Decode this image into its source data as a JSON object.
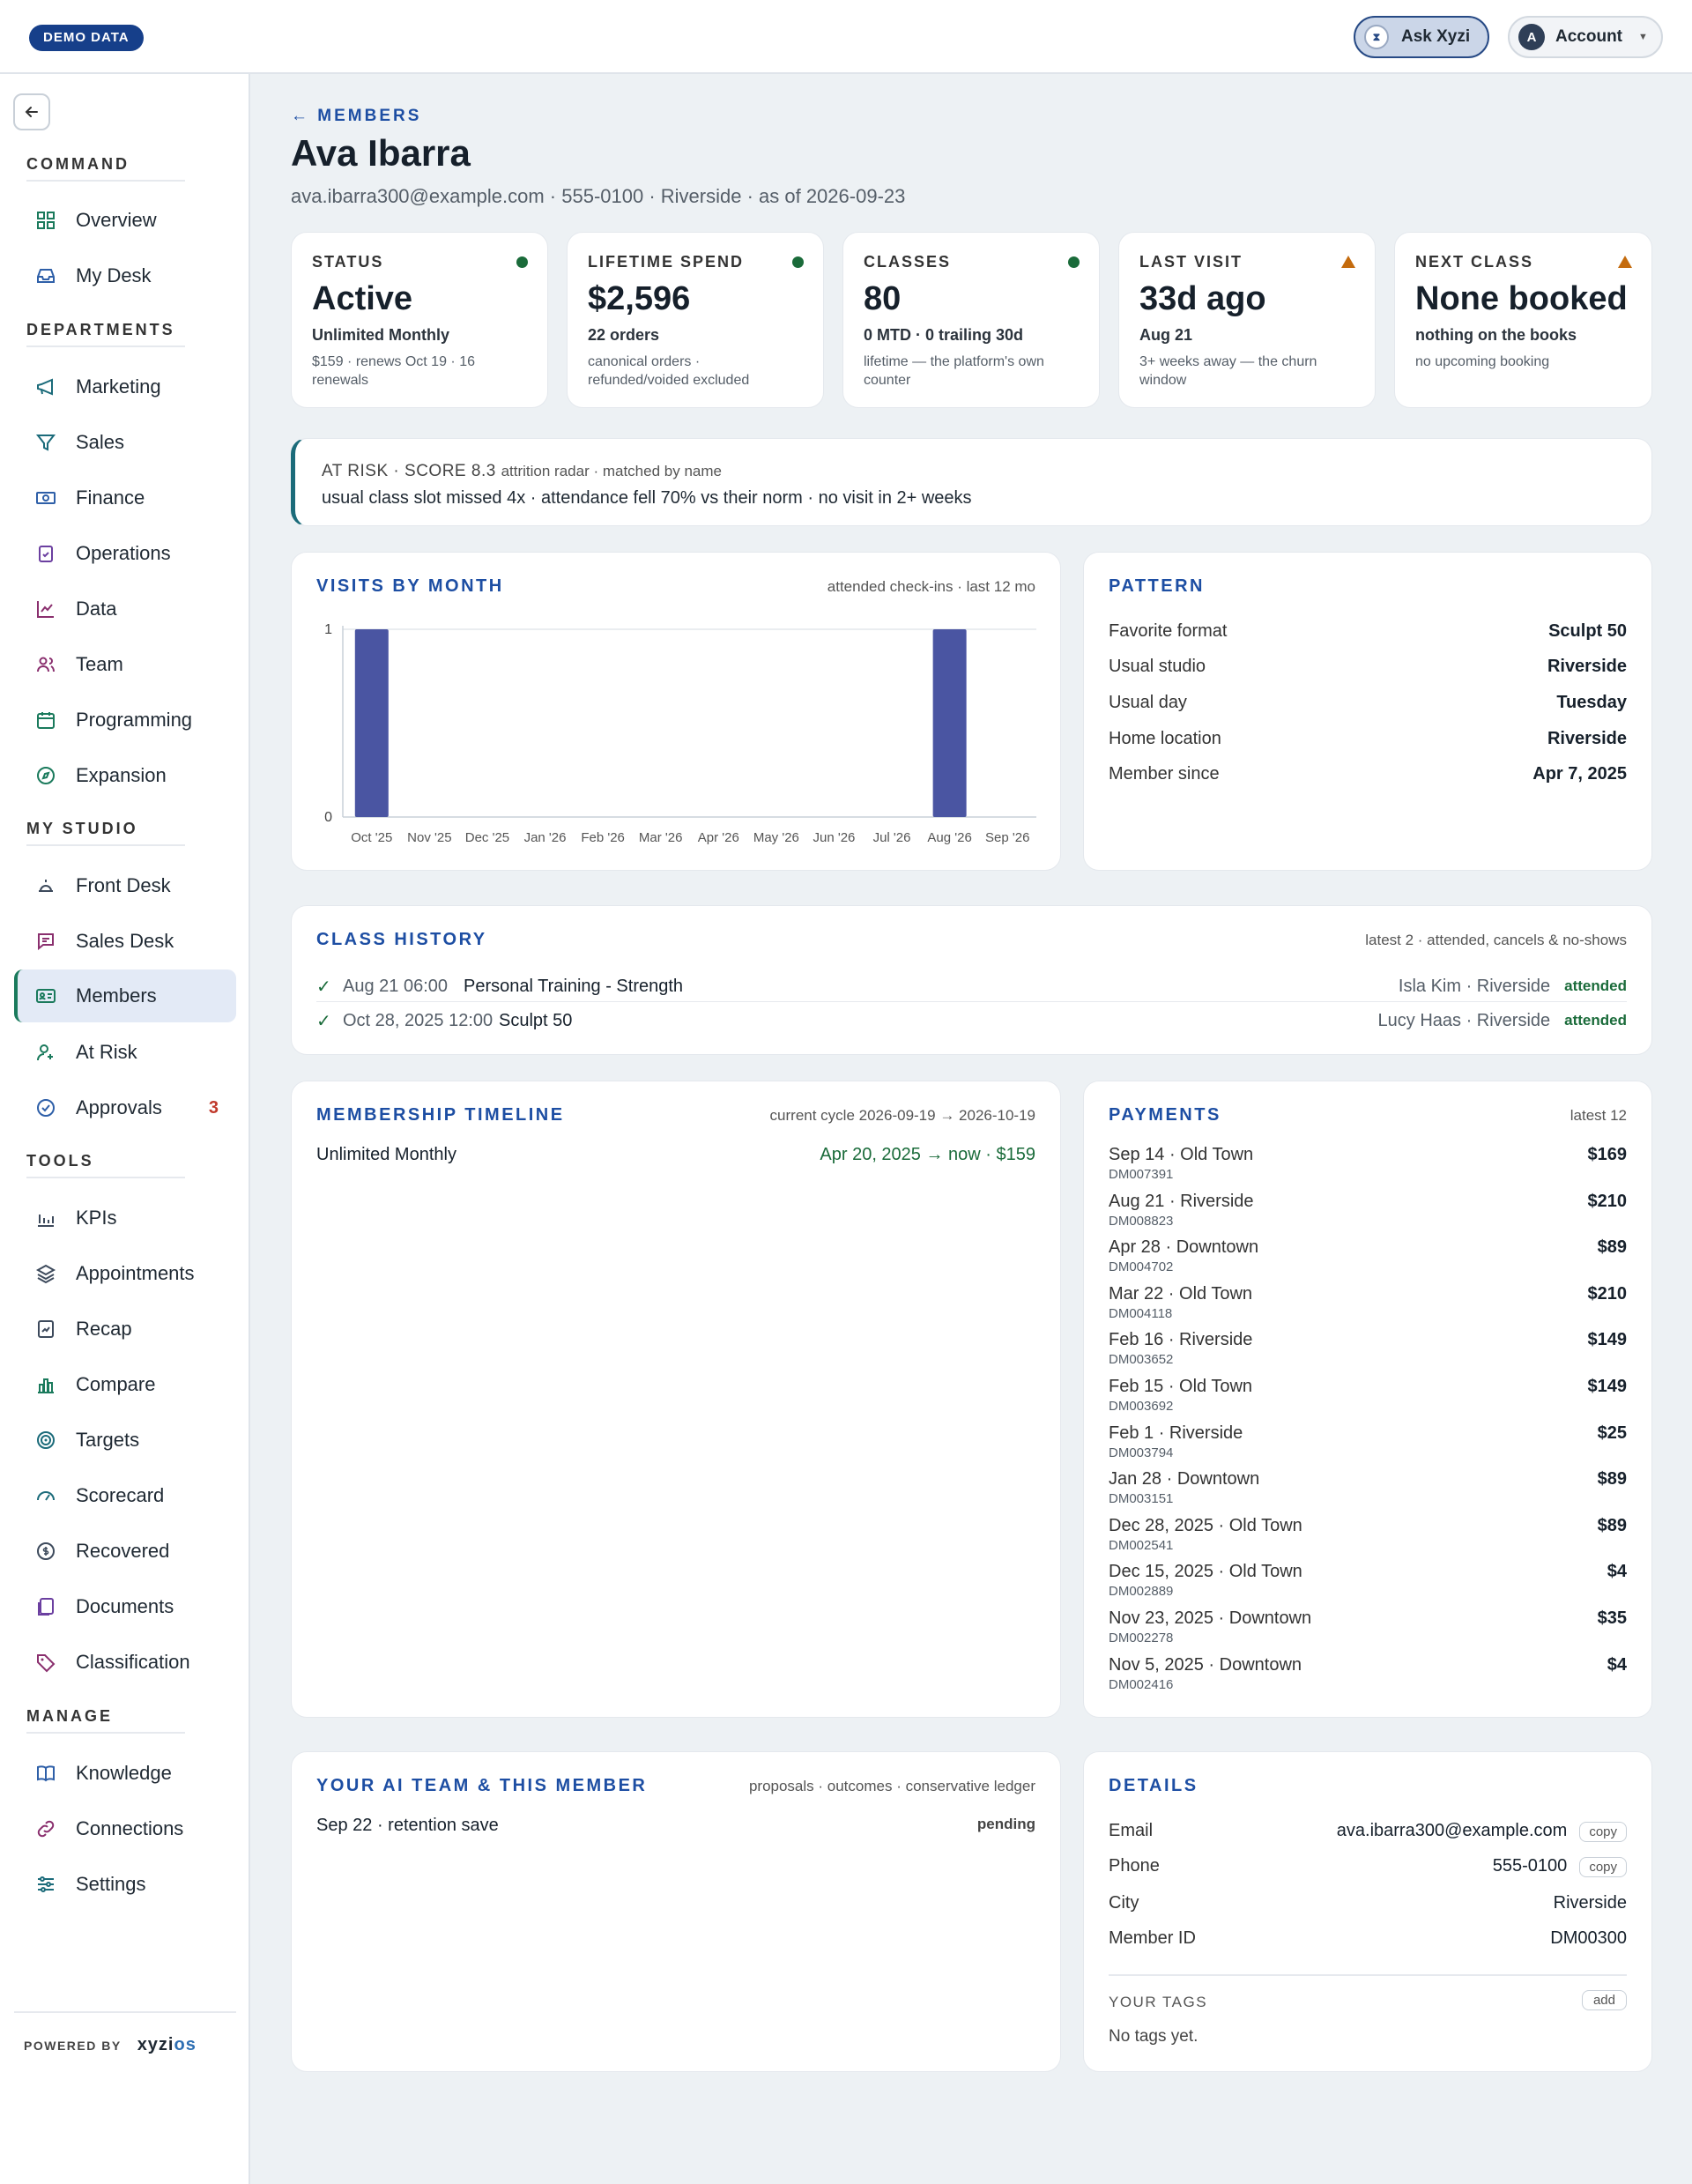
{
  "topbar": {
    "badge": "DEMO DATA",
    "ask_label": "Ask Xyzi",
    "ask_icon": "xyzi-logo-icon",
    "account_label": "Account",
    "account_initial": "A"
  },
  "sidebar": {
    "groups": {
      "command": "COMMAND",
      "departments": "DEPARTMENTS",
      "my_studio": "MY STUDIO",
      "tools": "TOOLS",
      "manage": "MANAGE"
    },
    "items": {
      "overview": "Overview",
      "my_desk": "My Desk",
      "marketing": "Marketing",
      "sales": "Sales",
      "finance": "Finance",
      "operations": "Operations",
      "data": "Data",
      "team": "Team",
      "programming": "Programming",
      "expansion": "Expansion",
      "front_desk": "Front Desk",
      "sales_desk": "Sales Desk",
      "members": "Members",
      "at_risk": "At Risk",
      "approvals": "Approvals",
      "approvals_count": "3",
      "kpis": "KPIs",
      "appointments": "Appointments",
      "recap": "Recap",
      "compare": "Compare",
      "targets": "Targets",
      "scorecard": "Scorecard",
      "recovered": "Recovered",
      "documents": "Documents",
      "classification": "Classification",
      "knowledge": "Knowledge",
      "connections": "Connections",
      "settings": "Settings"
    },
    "powered_by": "POWERED BY",
    "brand_a": "xyzi",
    "brand_b": "os"
  },
  "header": {
    "back": "← MEMBERS",
    "name": "Ava Ibarra",
    "subtitle": "ava.ibarra300@example.com · 555-0100 · Riverside · as of 2026-09-23"
  },
  "kpis": {
    "status": {
      "label": "STATUS",
      "value": "Active",
      "sub": "Unlimited Monthly",
      "note": "$159 · renews Oct 19 · 16 renewals",
      "indicator": "ok"
    },
    "spend": {
      "label": "LIFETIME SPEND",
      "value": "$2,596",
      "sub": "22 orders",
      "note": "canonical orders · refunded/voided excluded",
      "indicator": "ok"
    },
    "classes": {
      "label": "CLASSES",
      "value": "80",
      "sub": "0 MTD · 0 trailing 30d",
      "note": "lifetime — the platform's own counter",
      "indicator": "ok"
    },
    "last_visit": {
      "label": "LAST VISIT",
      "value": "33d ago",
      "sub": "Aug 21",
      "note": "3+ weeks away — the churn window",
      "indicator": "warn"
    },
    "next_class": {
      "label": "NEXT CLASS",
      "value": "None booked",
      "sub": "nothing on the books",
      "note": "no upcoming booking",
      "indicator": "warn"
    }
  },
  "risk": {
    "headline": "AT RISK · SCORE 8.3",
    "source": "attrition radar · matched by name",
    "reasons": "usual class slot missed 4x · attendance fell 70% vs their norm · no visit in 2+ weeks"
  },
  "visits": {
    "title": "VISITS BY MONTH",
    "meta": "attended check-ins · last 12 mo"
  },
  "chart_data": {
    "type": "bar",
    "categories": [
      "Oct '25",
      "Nov '25",
      "Dec '25",
      "Jan '26",
      "Feb '26",
      "Mar '26",
      "Apr '26",
      "May '26",
      "Jun '26",
      "Jul '26",
      "Aug '26",
      "Sep '26"
    ],
    "values": [
      1,
      0,
      0,
      0,
      0,
      0,
      0,
      0,
      0,
      0,
      1,
      0
    ],
    "ylim": [
      0,
      1
    ],
    "yticks": [
      "0",
      "1"
    ],
    "color": "#4a55a2",
    "grid": true
  },
  "pattern": {
    "title": "PATTERN",
    "rows": [
      {
        "k": "Favorite format",
        "v": "Sculpt 50"
      },
      {
        "k": "Usual studio",
        "v": "Riverside"
      },
      {
        "k": "Usual day",
        "v": "Tuesday"
      },
      {
        "k": "Home location",
        "v": "Riverside"
      },
      {
        "k": "Member since",
        "v": "Apr 7, 2025"
      }
    ]
  },
  "history": {
    "title": "CLASS HISTORY",
    "meta": "latest 2 · attended, cancels & no-shows",
    "rows": [
      {
        "mark": "✓",
        "when": "Aug 21 06:00",
        "cls": "Personal Training - Strength",
        "coach": "Isla Kim · Riverside",
        "status": "attended"
      },
      {
        "mark": "✓",
        "when": "Oct 28, 2025 12:00",
        "cls": "Sculpt 50",
        "coach": "Lucy Haas · Riverside",
        "status": "attended"
      }
    ]
  },
  "timeline": {
    "title": "MEMBERSHIP TIMELINE",
    "meta": "current cycle 2026-09-19 → 2026-10-19",
    "plan": "Unlimited Monthly",
    "range": "Apr 20, 2025 → now · $159"
  },
  "payments": {
    "title": "PAYMENTS",
    "meta": "latest 12",
    "rows": [
      {
        "d": "Sep 14 · Old Town",
        "a": "$169",
        "id": "DM007391"
      },
      {
        "d": "Aug 21 · Riverside",
        "a": "$210",
        "id": "DM008823"
      },
      {
        "d": "Apr 28 · Downtown",
        "a": "$89",
        "id": "DM004702"
      },
      {
        "d": "Mar 22 · Old Town",
        "a": "$210",
        "id": "DM004118"
      },
      {
        "d": "Feb 16 · Riverside",
        "a": "$149",
        "id": "DM003652"
      },
      {
        "d": "Feb 15 · Old Town",
        "a": "$149",
        "id": "DM003692"
      },
      {
        "d": "Feb 1 · Riverside",
        "a": "$25",
        "id": "DM003794"
      },
      {
        "d": "Jan 28 · Downtown",
        "a": "$89",
        "id": "DM003151"
      },
      {
        "d": "Dec 28, 2025 · Old Town",
        "a": "$89",
        "id": "DM002541"
      },
      {
        "d": "Dec 15, 2025 · Old Town",
        "a": "$4",
        "id": "DM002889"
      },
      {
        "d": "Nov 23, 2025 · Downtown",
        "a": "$35",
        "id": "DM002278"
      },
      {
        "d": "Nov 5, 2025 · Downtown",
        "a": "$4",
        "id": "DM002416"
      }
    ]
  },
  "ai_team": {
    "title": "YOUR AI TEAM & THIS MEMBER",
    "meta": "proposals · outcomes · conservative ledger",
    "item": "Sep 22 · retention save",
    "status": "pending"
  },
  "details": {
    "title": "DETAILS",
    "email_k": "Email",
    "email_v": "ava.ibarra300@example.com",
    "phone_k": "Phone",
    "phone_v": "555-0100",
    "city_k": "City",
    "city_v": "Riverside",
    "id_k": "Member ID",
    "id_v": "DM00300",
    "copy": "copy",
    "tags_label": "YOUR TAGS",
    "add": "add",
    "tags_empty": "No tags yet."
  },
  "colors": {
    "accent": "#1d4ea3",
    "ok": "#1a6b3a",
    "warn": "#c46b0d",
    "bar": "#4a55a2"
  }
}
